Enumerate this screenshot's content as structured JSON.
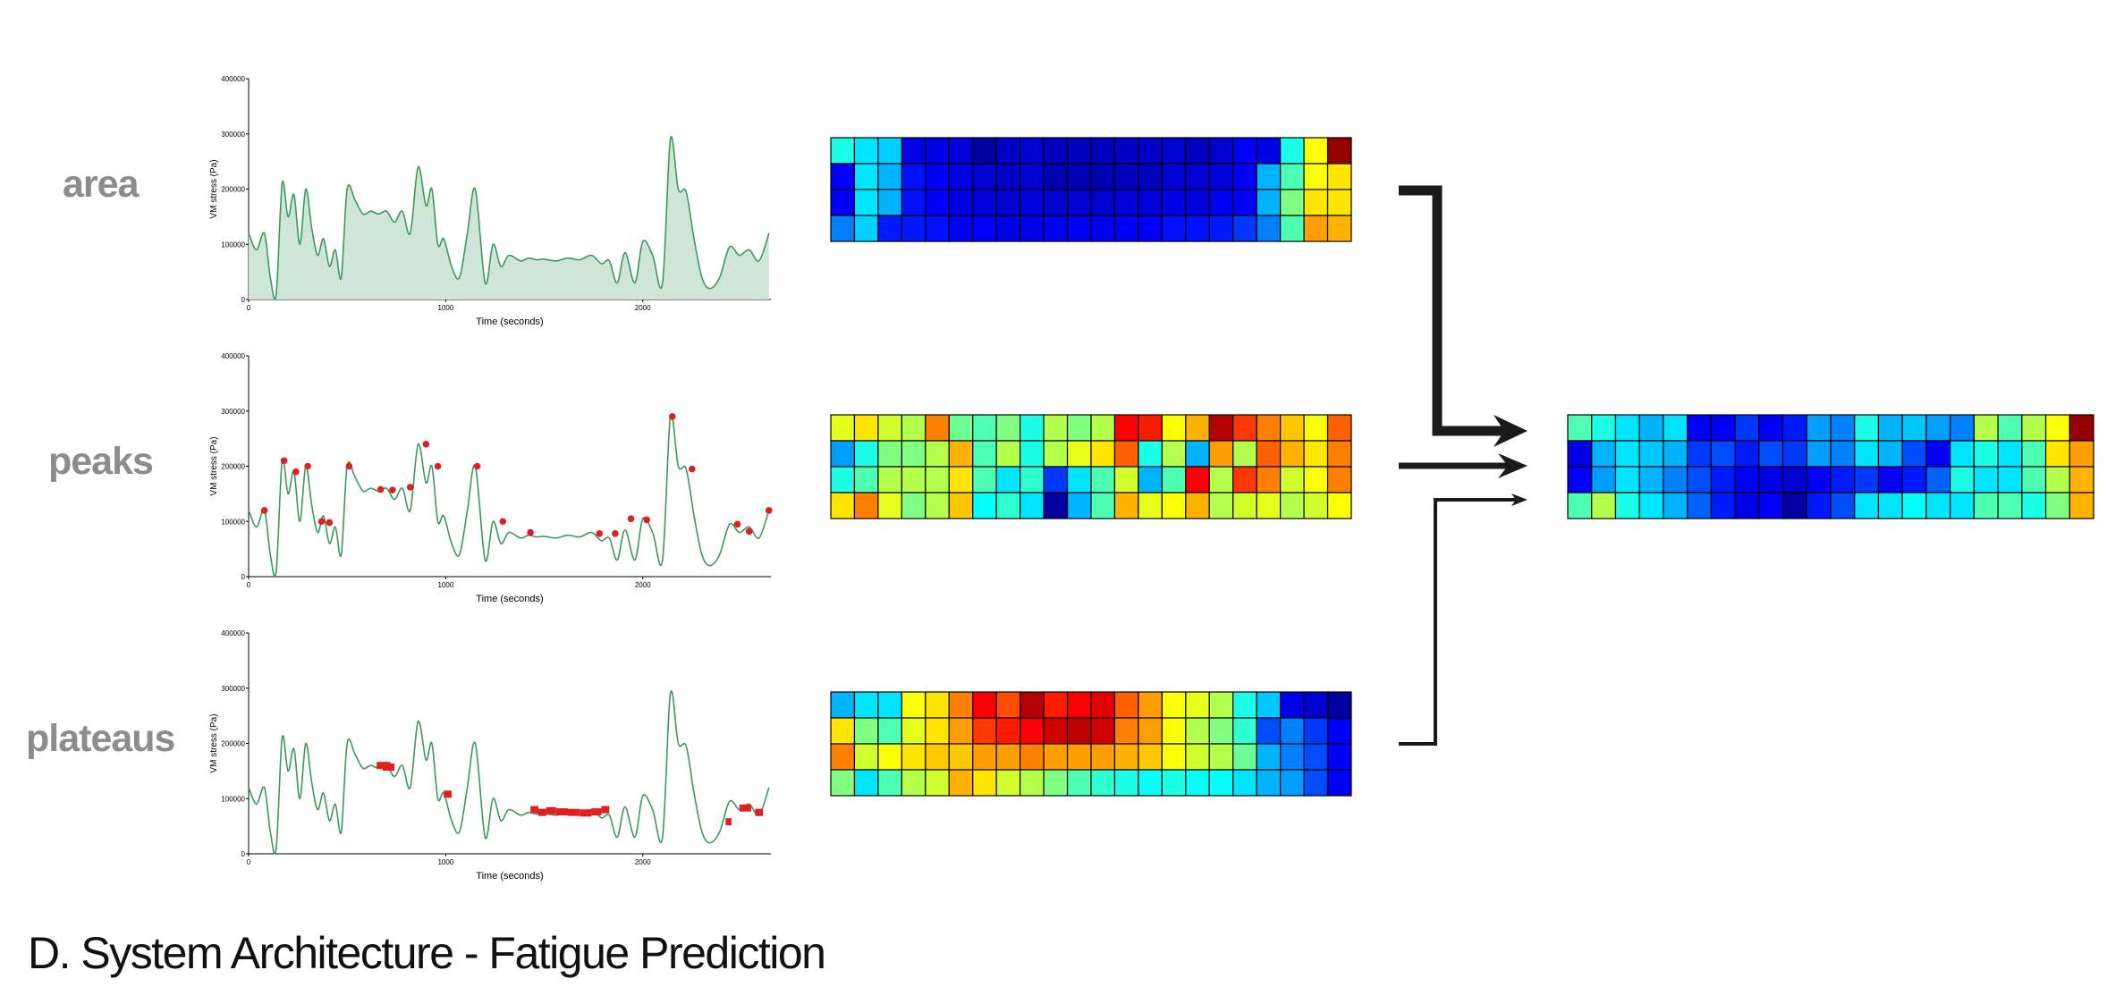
{
  "caption": "D. System Architecture - Fatigue Prediction",
  "rows": [
    {
      "label": "area"
    },
    {
      "label": "peaks"
    },
    {
      "label": "plateaus"
    }
  ],
  "axes": {
    "xlabel": "Time (seconds)",
    "ylabel": "VM stress (Pa)",
    "yticks": [
      "0",
      "100000",
      "200000",
      "300000",
      "400000"
    ],
    "ytick_values": [
      0,
      100000,
      200000,
      300000,
      400000
    ],
    "xticks": [
      "0",
      "1000",
      "2000"
    ],
    "xtick_values": [
      0,
      1000,
      2000
    ],
    "xlim": [
      0,
      2650
    ],
    "ylim": [
      0,
      400000
    ]
  },
  "colors": {
    "line": "#3a9a5c",
    "area_fill": "#cfe6d6",
    "marker": "#e02020",
    "arrow": "#1a1a1a",
    "label": "#8c8c8c"
  },
  "chart_data": [
    {
      "type": "area",
      "name_hint": "area",
      "xlabel": "Time (seconds)",
      "ylabel": "VM stress (Pa)",
      "xlim": [
        0,
        2650
      ],
      "ylim": [
        0,
        400000
      ],
      "x": [
        0,
        40,
        80,
        110,
        140,
        170,
        200,
        230,
        260,
        290,
        320,
        350,
        380,
        410,
        440,
        470,
        500,
        540,
        580,
        620,
        660,
        700,
        740,
        780,
        820,
        860,
        900,
        930,
        960,
        990,
        1030,
        1070,
        1110,
        1150,
        1200,
        1240,
        1280,
        1320,
        1380,
        1420,
        1460,
        1500,
        1560,
        1620,
        1680,
        1740,
        1790,
        1830,
        1870,
        1910,
        1960,
        2000,
        2050,
        2100,
        2140,
        2180,
        2220,
        2260,
        2300,
        2340,
        2390,
        2440,
        2490,
        2540,
        2590,
        2640
      ],
      "y": [
        120000,
        90000,
        120000,
        40000,
        10000,
        210000,
        150000,
        190000,
        100000,
        200000,
        130000,
        80000,
        110000,
        60000,
        90000,
        40000,
        200000,
        180000,
        155000,
        160000,
        155000,
        160000,
        140000,
        160000,
        120000,
        240000,
        170000,
        200000,
        100000,
        110000,
        60000,
        40000,
        120000,
        200000,
        30000,
        100000,
        60000,
        80000,
        70000,
        75000,
        72000,
        73000,
        70000,
        75000,
        72000,
        80000,
        65000,
        70000,
        30000,
        85000,
        30000,
        105000,
        80000,
        30000,
        290000,
        200000,
        195000,
        110000,
        40000,
        20000,
        40000,
        95000,
        80000,
        90000,
        70000,
        120000
      ]
    },
    {
      "type": "line",
      "name_hint": "peaks",
      "xlabel": "Time (seconds)",
      "ylabel": "VM stress (Pa)",
      "xlim": [
        0,
        2650
      ],
      "ylim": [
        0,
        400000
      ],
      "x": [
        0,
        40,
        80,
        110,
        140,
        170,
        200,
        230,
        260,
        290,
        320,
        350,
        380,
        410,
        440,
        470,
        500,
        540,
        580,
        620,
        660,
        700,
        740,
        780,
        820,
        860,
        900,
        930,
        960,
        990,
        1030,
        1070,
        1110,
        1150,
        1200,
        1240,
        1280,
        1320,
        1380,
        1420,
        1460,
        1500,
        1560,
        1620,
        1680,
        1740,
        1790,
        1830,
        1870,
        1910,
        1960,
        2000,
        2050,
        2100,
        2140,
        2180,
        2220,
        2260,
        2300,
        2340,
        2390,
        2440,
        2490,
        2540,
        2590,
        2640
      ],
      "y": [
        120000,
        90000,
        120000,
        40000,
        10000,
        210000,
        150000,
        190000,
        100000,
        200000,
        130000,
        80000,
        110000,
        60000,
        90000,
        40000,
        200000,
        180000,
        155000,
        160000,
        155000,
        160000,
        140000,
        160000,
        120000,
        240000,
        170000,
        200000,
        100000,
        110000,
        60000,
        40000,
        120000,
        200000,
        30000,
        100000,
        60000,
        80000,
        70000,
        75000,
        72000,
        73000,
        70000,
        75000,
        72000,
        80000,
        65000,
        70000,
        30000,
        85000,
        30000,
        105000,
        80000,
        30000,
        290000,
        200000,
        195000,
        110000,
        40000,
        20000,
        40000,
        95000,
        80000,
        90000,
        70000,
        120000
      ],
      "peaks_x": [
        80,
        180,
        240,
        300,
        370,
        410,
        510,
        670,
        730,
        820,
        900,
        960,
        1160,
        1290,
        1430,
        1780,
        1860,
        1940,
        2020,
        2150,
        2250,
        2480,
        2540,
        2640
      ],
      "peaks_y": [
        120000,
        210000,
        190000,
        200000,
        100000,
        98000,
        200000,
        158000,
        157000,
        162000,
        240000,
        200000,
        200000,
        100000,
        80000,
        78000,
        78000,
        105000,
        103000,
        290000,
        195000,
        95000,
        82000,
        120000
      ]
    },
    {
      "type": "line",
      "name_hint": "plateaus",
      "xlabel": "Time (seconds)",
      "ylabel": "VM stress (Pa)",
      "xlim": [
        0,
        2650
      ],
      "ylim": [
        0,
        400000
      ],
      "x": [
        0,
        40,
        80,
        110,
        140,
        170,
        200,
        230,
        260,
        290,
        320,
        350,
        380,
        410,
        440,
        470,
        500,
        540,
        580,
        620,
        660,
        700,
        740,
        780,
        820,
        860,
        900,
        930,
        960,
        990,
        1030,
        1070,
        1110,
        1150,
        1200,
        1240,
        1280,
        1320,
        1380,
        1420,
        1460,
        1500,
        1560,
        1620,
        1680,
        1740,
        1790,
        1830,
        1870,
        1910,
        1960,
        2000,
        2050,
        2100,
        2140,
        2180,
        2220,
        2260,
        2300,
        2340,
        2390,
        2440,
        2490,
        2540,
        2590,
        2640
      ],
      "y": [
        120000,
        90000,
        120000,
        40000,
        10000,
        210000,
        150000,
        190000,
        100000,
        200000,
        130000,
        80000,
        110000,
        60000,
        90000,
        40000,
        200000,
        180000,
        155000,
        160000,
        155000,
        160000,
        140000,
        160000,
        120000,
        240000,
        170000,
        200000,
        100000,
        110000,
        60000,
        40000,
        120000,
        200000,
        30000,
        100000,
        60000,
        80000,
        70000,
        75000,
        72000,
        73000,
        70000,
        75000,
        72000,
        80000,
        65000,
        70000,
        30000,
        85000,
        30000,
        105000,
        80000,
        30000,
        290000,
        200000,
        195000,
        110000,
        40000,
        20000,
        40000,
        95000,
        80000,
        90000,
        70000,
        120000
      ],
      "plateaus": [
        {
          "x0": 650,
          "x1": 720,
          "y": 160000
        },
        {
          "x0": 680,
          "x1": 740,
          "y": 157000
        },
        {
          "x0": 990,
          "x1": 1030,
          "y": 108000
        },
        {
          "x0": 1430,
          "x1": 1470,
          "y": 80000
        },
        {
          "x0": 1470,
          "x1": 1510,
          "y": 75000
        },
        {
          "x0": 1510,
          "x1": 1560,
          "y": 78000
        },
        {
          "x0": 1560,
          "x1": 1620,
          "y": 76000
        },
        {
          "x0": 1620,
          "x1": 1680,
          "y": 75000
        },
        {
          "x0": 1680,
          "x1": 1740,
          "y": 74000
        },
        {
          "x0": 1740,
          "x1": 1790,
          "y": 76000
        },
        {
          "x0": 1790,
          "x1": 1830,
          "y": 80000
        },
        {
          "x0": 2420,
          "x1": 2450,
          "y": 58000
        },
        {
          "x0": 2490,
          "x1": 2550,
          "y": 83000
        },
        {
          "x0": 2570,
          "x1": 2610,
          "y": 75000
        }
      ]
    }
  ],
  "heatmaps": [
    {
      "name": "area",
      "cells": [
        [
          0.4,
          0.35,
          0.33,
          0.1,
          0.1,
          0.09,
          0.03,
          0.07,
          0.08,
          0.06,
          0.06,
          0.06,
          0.07,
          0.07,
          0.08,
          0.06,
          0.08,
          0.12,
          0.1,
          0.4,
          0.62,
          0.98
        ],
        [
          0.12,
          0.35,
          0.3,
          0.14,
          0.12,
          0.1,
          0.08,
          0.07,
          0.08,
          0.05,
          0.05,
          0.05,
          0.06,
          0.06,
          0.08,
          0.08,
          0.09,
          0.12,
          0.3,
          0.45,
          0.62,
          0.65
        ],
        [
          0.12,
          0.35,
          0.3,
          0.14,
          0.12,
          0.1,
          0.09,
          0.08,
          0.09,
          0.08,
          0.08,
          0.08,
          0.09,
          0.09,
          0.1,
          0.09,
          0.11,
          0.12,
          0.3,
          0.5,
          0.65,
          0.65
        ],
        [
          0.25,
          0.33,
          0.15,
          0.15,
          0.14,
          0.12,
          0.12,
          0.1,
          0.1,
          0.11,
          0.11,
          0.11,
          0.12,
          0.12,
          0.14,
          0.14,
          0.15,
          0.18,
          0.25,
          0.45,
          0.72,
          0.7
        ]
      ]
    },
    {
      "name": "peaks",
      "cells": [
        [
          0.6,
          0.65,
          0.58,
          0.55,
          0.75,
          0.48,
          0.45,
          0.5,
          0.4,
          0.55,
          0.5,
          0.55,
          0.88,
          0.85,
          0.62,
          0.7,
          0.95,
          0.82,
          0.75,
          0.68,
          0.62,
          0.78
        ],
        [
          0.28,
          0.4,
          0.5,
          0.5,
          0.55,
          0.7,
          0.45,
          0.55,
          0.4,
          0.55,
          0.6,
          0.65,
          0.78,
          0.4,
          0.55,
          0.3,
          0.72,
          0.55,
          0.78,
          0.7,
          0.65,
          0.75
        ],
        [
          0.4,
          0.45,
          0.55,
          0.55,
          0.55,
          0.65,
          0.45,
          0.35,
          0.42,
          0.18,
          0.35,
          0.45,
          0.58,
          0.3,
          0.45,
          0.88,
          0.55,
          0.82,
          0.75,
          0.58,
          0.62,
          0.75
        ],
        [
          0.65,
          0.75,
          0.6,
          0.5,
          0.55,
          0.68,
          0.38,
          0.42,
          0.35,
          0.03,
          0.3,
          0.45,
          0.7,
          0.6,
          0.62,
          0.7,
          0.55,
          0.58,
          0.6,
          0.55,
          0.58,
          0.62
        ]
      ]
    },
    {
      "name": "plateaus",
      "cells": [
        [
          0.3,
          0.35,
          0.35,
          0.62,
          0.65,
          0.75,
          0.88,
          0.8,
          0.95,
          0.85,
          0.88,
          0.9,
          0.78,
          0.72,
          0.62,
          0.6,
          0.55,
          0.4,
          0.32,
          0.1,
          0.08,
          0.03
        ],
        [
          0.65,
          0.5,
          0.45,
          0.6,
          0.65,
          0.72,
          0.82,
          0.85,
          0.88,
          0.92,
          0.94,
          0.92,
          0.75,
          0.72,
          0.62,
          0.55,
          0.5,
          0.42,
          0.2,
          0.25,
          0.18,
          0.12
        ],
        [
          0.75,
          0.58,
          0.62,
          0.65,
          0.68,
          0.68,
          0.72,
          0.72,
          0.75,
          0.72,
          0.72,
          0.72,
          0.7,
          0.68,
          0.62,
          0.58,
          0.55,
          0.48,
          0.3,
          0.25,
          0.2,
          0.12
        ],
        [
          0.5,
          0.35,
          0.45,
          0.55,
          0.58,
          0.7,
          0.65,
          0.58,
          0.55,
          0.5,
          0.45,
          0.42,
          0.4,
          0.38,
          0.4,
          0.38,
          0.38,
          0.35,
          0.3,
          0.28,
          0.2,
          0.12
        ]
      ]
    },
    {
      "name": "output",
      "cells": [
        [
          0.45,
          0.4,
          0.35,
          0.3,
          0.35,
          0.12,
          0.12,
          0.18,
          0.12,
          0.15,
          0.28,
          0.25,
          0.4,
          0.3,
          0.32,
          0.28,
          0.25,
          0.55,
          0.45,
          0.55,
          0.62,
          0.98
        ],
        [
          0.1,
          0.3,
          0.35,
          0.32,
          0.3,
          0.18,
          0.2,
          0.15,
          0.2,
          0.18,
          0.28,
          0.25,
          0.35,
          0.3,
          0.2,
          0.12,
          0.35,
          0.4,
          0.35,
          0.45,
          0.65,
          0.72
        ],
        [
          0.12,
          0.28,
          0.35,
          0.3,
          0.25,
          0.2,
          0.15,
          0.12,
          0.1,
          0.08,
          0.12,
          0.15,
          0.18,
          0.12,
          0.15,
          0.22,
          0.4,
          0.35,
          0.35,
          0.45,
          0.55,
          0.7
        ],
        [
          0.45,
          0.55,
          0.4,
          0.35,
          0.3,
          0.22,
          0.15,
          0.1,
          0.12,
          0.03,
          0.15,
          0.2,
          0.35,
          0.35,
          0.38,
          0.35,
          0.35,
          0.45,
          0.45,
          0.4,
          0.5,
          0.7
        ]
      ]
    }
  ]
}
